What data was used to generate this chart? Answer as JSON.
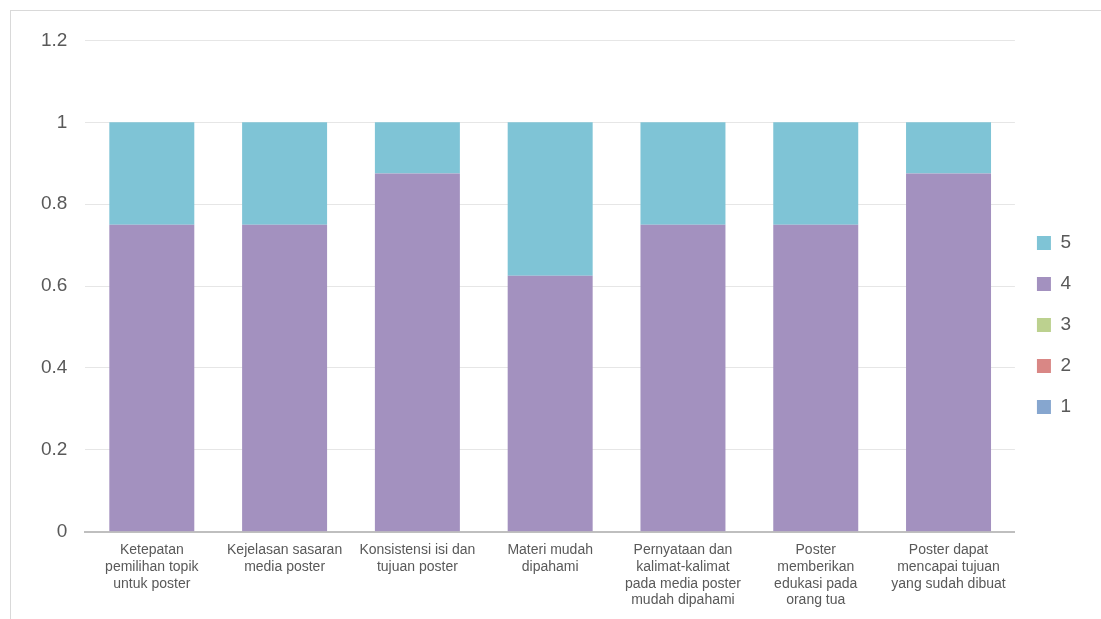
{
  "chart_data": {
    "type": "bar",
    "stacked": true,
    "categories": [
      "Ketepatan pemilihan topik untuk poster",
      "Kejelasan sasaran media poster",
      "Konsistensi isi dan tujuan poster",
      "Materi mudah dipahami",
      "Pernyataan dan kalimat-kalimat pada media poster mudah dipahami",
      "Poster memberikan edukasi pada orang tua",
      "Poster dapat mencapai tujuan yang sudah dibuat"
    ],
    "series": [
      {
        "name": "1",
        "color": "#86a6cf",
        "values": [
          0,
          0,
          0,
          0,
          0,
          0,
          0
        ]
      },
      {
        "name": "2",
        "color": "#d98785",
        "values": [
          0,
          0,
          0,
          0,
          0,
          0,
          0
        ]
      },
      {
        "name": "3",
        "color": "#bcd18f",
        "values": [
          0,
          0,
          0,
          0,
          0,
          0,
          0
        ]
      },
      {
        "name": "4",
        "color": "#a391bf",
        "values": [
          0.75,
          0.75,
          0.875,
          0.625,
          0.75,
          0.75,
          0.875
        ]
      },
      {
        "name": "5",
        "color": "#7fc4d6",
        "values": [
          0.25,
          0.25,
          0.125,
          0.375,
          0.25,
          0.25,
          0.125
        ]
      }
    ],
    "ylim": [
      0,
      1.2
    ],
    "yticks": [
      0,
      0.2,
      0.4,
      0.6,
      0.8,
      1,
      1.2
    ],
    "grid": "y",
    "legend": "right"
  }
}
